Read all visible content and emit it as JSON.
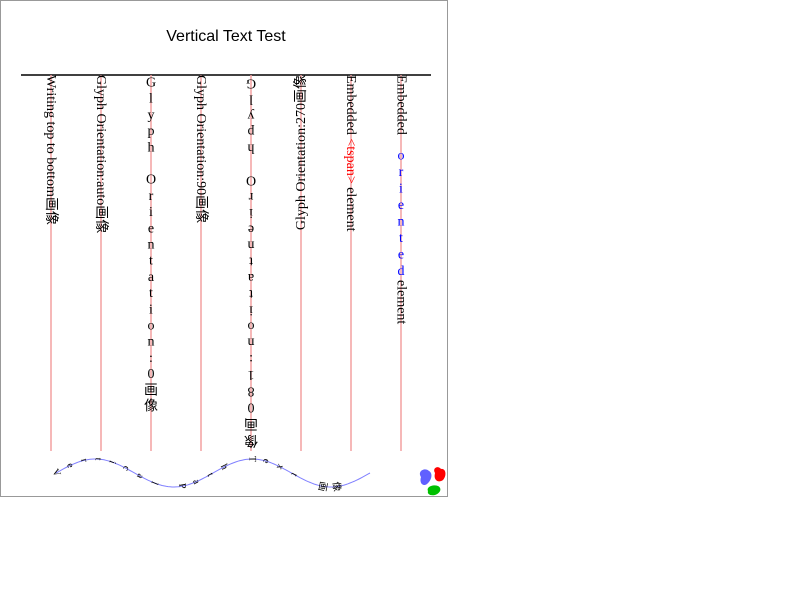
{
  "title": "Vertical Text Test",
  "columns": [
    {
      "label": "Writing top to bottom",
      "cjk": "画像",
      "mode": "rot90"
    },
    {
      "label": "Glyph Orientation:auto",
      "cjk": "画像",
      "mode": "rot90"
    },
    {
      "label": "Glyph Orientation:0",
      "cjk": "画像",
      "mode": "upright"
    },
    {
      "label": "Glyph Orientation:90",
      "cjk": "画像",
      "mode": "rot90"
    },
    {
      "label": "Glyph Orientation:180",
      "cjk": "画像",
      "mode": "flip"
    },
    {
      "label": "Glyph Orientation:270",
      "cjk": "画像",
      "mode": "rot270"
    },
    {
      "before": "Embedded ",
      "span": "<tspan>",
      "after": " element",
      "mode": "mixed-tspan"
    },
    {
      "before": "Embedded ",
      "span": "oriented",
      "after": " element",
      "mode": "mixed-oriented"
    }
  ],
  "path_text": "Vertical Path Text 画像",
  "colors": {
    "guide": "#f4a0a0",
    "rule": "#000000",
    "text": "#000000",
    "tspan": "#ff0000",
    "oriented": "#0000ff",
    "path": "#8080ff",
    "blob_blue": "#6060ff",
    "blob_red": "#ff0000",
    "blob_green": "#00c000"
  },
  "icons": [
    "blue-blob-icon",
    "red-blob-icon",
    "green-blob-icon"
  ]
}
